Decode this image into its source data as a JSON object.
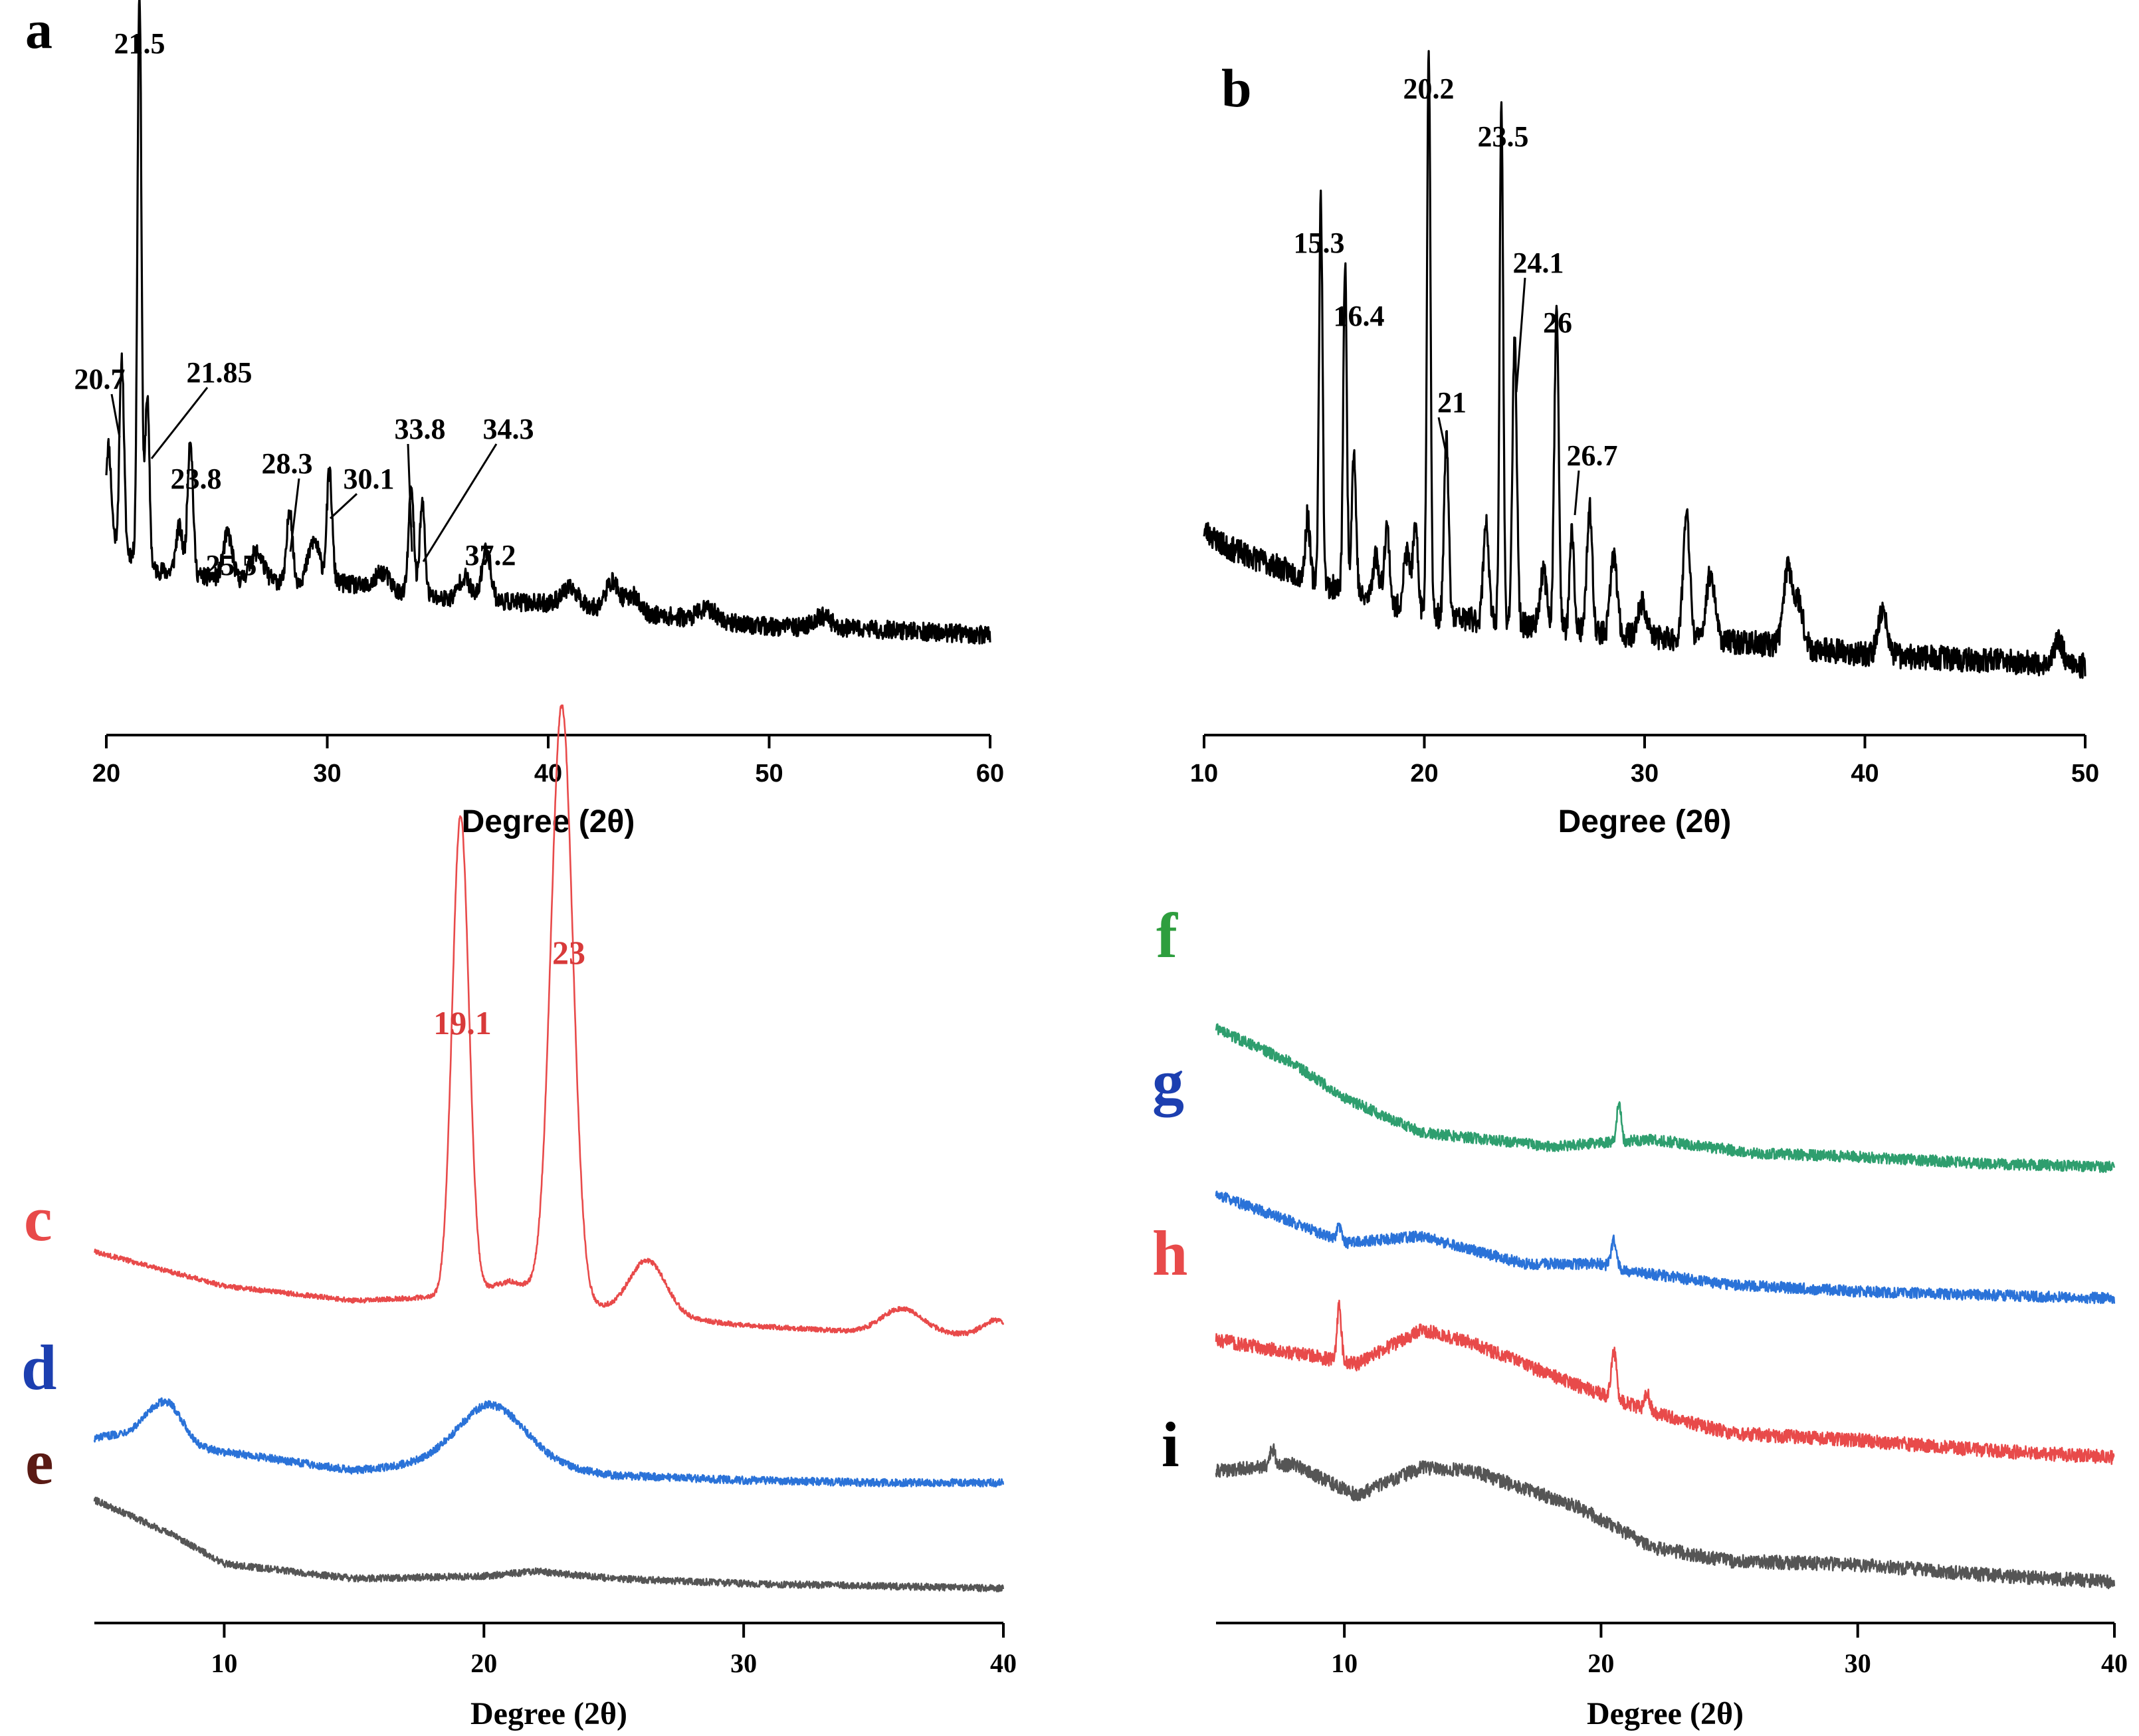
{
  "chart_data": [
    {
      "panel": "a",
      "type": "line",
      "xlabel": "Degree (2θ)",
      "xlim": [
        20,
        60
      ],
      "xticks": [
        20,
        30,
        40,
        50,
        60
      ],
      "ylim": [
        0,
        100
      ],
      "series": [
        {
          "name": "a",
          "color": "#000000",
          "baseline": [
            [
              20,
              18
            ],
            [
              22,
              12
            ],
            [
              26,
              10
            ],
            [
              30,
              10
            ],
            [
              35,
              7
            ],
            [
              40,
              6
            ],
            [
              45,
              4
            ],
            [
              50,
              2
            ],
            [
              55,
              1.5
            ],
            [
              60,
              0.5
            ]
          ],
          "noise": 1.6,
          "peaks": [
            [
              20.1,
              16,
              0.12
            ],
            [
              20.7,
              33,
              0.1
            ],
            [
              21.5,
              100,
              0.09
            ],
            [
              21.85,
              30,
              0.1
            ],
            [
              23.3,
              8,
              0.15
            ],
            [
              23.8,
              24,
              0.12
            ],
            [
              25.5,
              8,
              0.2
            ],
            [
              26.8,
              5,
              0.3
            ],
            [
              28.3,
              13,
              0.12
            ],
            [
              29.4,
              7,
              0.25
            ],
            [
              30.1,
              19,
              0.12
            ],
            [
              32.5,
              3,
              0.3
            ],
            [
              33.8,
              18,
              0.12
            ],
            [
              34.3,
              16,
              0.12
            ],
            [
              36.2,
              4,
              0.25
            ],
            [
              37.2,
              9,
              0.2
            ],
            [
              41,
              3,
              0.4
            ],
            [
              42.9,
              5,
              0.3
            ],
            [
              43.8,
              3,
              0.3
            ],
            [
              47.2,
              2,
              0.4
            ],
            [
              52.4,
              2,
              0.4
            ]
          ]
        }
      ],
      "annotations": [
        {
          "text": "21.5",
          "x": 21.5,
          "y": 100
        },
        {
          "text": "20.7",
          "x": 20.7,
          "y": 33
        },
        {
          "text": "21.85",
          "x": 21.85,
          "y": 30
        },
        {
          "text": "23.8",
          "x": 23.8,
          "y": 24
        },
        {
          "text": "25.5",
          "x": 25.5,
          "y": 8
        },
        {
          "text": "28.3",
          "x": 28.3,
          "y": 13
        },
        {
          "text": "30.1",
          "x": 30.1,
          "y": 19
        },
        {
          "text": "33.8",
          "x": 33.8,
          "y": 18
        },
        {
          "text": "34.3",
          "x": 34.3,
          "y": 16
        },
        {
          "text": "37.2",
          "x": 37.2,
          "y": 9
        }
      ]
    },
    {
      "panel": "b",
      "type": "line",
      "xlabel": "Degree (2θ)",
      "xlim": [
        10,
        50
      ],
      "xticks": [
        10,
        20,
        30,
        40,
        50
      ],
      "ylim": [
        0,
        100
      ],
      "series": [
        {
          "name": "b",
          "color": "#000000",
          "baseline": [
            [
              10,
              25
            ],
            [
              11,
              22
            ],
            [
              13,
              19
            ],
            [
              15,
              16
            ],
            [
              18,
              12
            ],
            [
              20,
              10
            ],
            [
              25,
              8
            ],
            [
              30,
              6
            ],
            [
              35,
              5
            ],
            [
              40,
              3
            ],
            [
              45,
              2
            ],
            [
              50,
              1
            ]
          ],
          "noise": 2.2,
          "peaks": [
            [
              14.7,
              11,
              0.1
            ],
            [
              15.3,
              68,
              0.08
            ],
            [
              16.4,
              58,
              0.08
            ],
            [
              16.8,
              25,
              0.1
            ],
            [
              17.8,
              8,
              0.15
            ],
            [
              18.3,
              14,
              0.12
            ],
            [
              19.2,
              10,
              0.15
            ],
            [
              19.6,
              14,
              0.12
            ],
            [
              20.2,
              100,
              0.08
            ],
            [
              21,
              32,
              0.1
            ],
            [
              22.8,
              18,
              0.12
            ],
            [
              23.5,
              91,
              0.08
            ],
            [
              24.1,
              50,
              0.1
            ],
            [
              25.4,
              10,
              0.15
            ],
            [
              26,
              56,
              0.1
            ],
            [
              26.7,
              17,
              0.1
            ],
            [
              27.5,
              22,
              0.12
            ],
            [
              28.6,
              14,
              0.15
            ],
            [
              29.9,
              6,
              0.2
            ],
            [
              31.9,
              22,
              0.15
            ],
            [
              33,
              12,
              0.2
            ],
            [
              36.5,
              14,
              0.2
            ],
            [
              37,
              8,
              0.2
            ],
            [
              40.8,
              8,
              0.2
            ],
            [
              48.8,
              4,
              0.2
            ]
          ]
        }
      ],
      "annotations": [
        {
          "text": "20.2",
          "x": 20.2,
          "y": 100
        },
        {
          "text": "23.5",
          "x": 23.5,
          "y": 91
        },
        {
          "text": "15.3",
          "x": 15.3,
          "y": 68
        },
        {
          "text": "16.4",
          "x": 16.4,
          "y": 58
        },
        {
          "text": "24.1",
          "x": 24.1,
          "y": 50
        },
        {
          "text": "26",
          "x": 26,
          "y": 56
        },
        {
          "text": "21",
          "x": 21,
          "y": 32
        },
        {
          "text": "26.7",
          "x": 26.7,
          "y": 17
        }
      ]
    },
    {
      "panel": "c-d-e",
      "type": "line",
      "xlabel": "Degree (2θ)",
      "xlim": [
        5,
        40
      ],
      "xticks": [
        10,
        20,
        30,
        40
      ],
      "series": [
        {
          "name": "c",
          "color": "#e84a4a",
          "offset": 95,
          "noise": 1.0,
          "baseline": [
            [
              5,
              42
            ],
            [
              10,
              28
            ],
            [
              15,
              22
            ],
            [
              19,
              24
            ],
            [
              21,
              30
            ],
            [
              25,
              18
            ],
            [
              30,
              12
            ],
            [
              35,
              9
            ],
            [
              40,
              8
            ]
          ],
          "peaks": [
            [
              19.1,
              195,
              0.32
            ],
            [
              23,
              240,
              0.42
            ],
            [
              26.3,
              22,
              0.7
            ],
            [
              36.1,
              10,
              0.8
            ],
            [
              39.7,
              6,
              0.5
            ]
          ]
        },
        {
          "name": "d",
          "color": "#2a72d8",
          "offset": 43,
          "noise": 1.6,
          "baseline": [
            [
              5,
              18
            ],
            [
              7,
              22
            ],
            [
              9,
              14
            ],
            [
              15,
              5
            ],
            [
              20,
              10
            ],
            [
              25,
              3
            ],
            [
              30,
              1
            ],
            [
              35,
              0
            ],
            [
              40,
              0
            ]
          ],
          "peaks": [
            [
              7.8,
              14,
              0.6
            ],
            [
              20.3,
              22,
              1.3
            ]
          ]
        },
        {
          "name": "e",
          "color": "#555555",
          "offset": 0,
          "noise": 1.4,
          "baseline": [
            [
              5,
              36
            ],
            [
              8,
              22
            ],
            [
              10,
              10
            ],
            [
              15,
              4
            ],
            [
              20,
              5
            ],
            [
              22,
              7
            ],
            [
              25,
              4
            ],
            [
              30,
              2
            ],
            [
              35,
              1
            ],
            [
              40,
              0
            ]
          ],
          "peaks": []
        }
      ],
      "annotations": [
        {
          "text": "19.1",
          "x": 19.1,
          "series": "c"
        },
        {
          "text": "23",
          "x": 23,
          "series": "c"
        }
      ]
    },
    {
      "panel": "f-g-h-i",
      "type": "line",
      "xlabel": "Degree (2θ)",
      "xlim": [
        5,
        40
      ],
      "xticks": [
        10,
        20,
        30,
        40
      ],
      "series": [
        {
          "name": "f",
          "color": "#2e9e6e",
          "offset": 120,
          "noise": 1.6,
          "baseline": [
            [
              5,
              40
            ],
            [
              8,
              30
            ],
            [
              10,
              20
            ],
            [
              13,
              10
            ],
            [
              18,
              6
            ],
            [
              22,
              8
            ],
            [
              26,
              4
            ],
            [
              30,
              3
            ],
            [
              35,
              1
            ],
            [
              40,
              0
            ]
          ],
          "peaks": [
            [
              20.7,
              12,
              0.08
            ]
          ]
        },
        {
          "name": "g",
          "color": "#2a72d8",
          "offset": 82,
          "noise": 1.6,
          "baseline": [
            [
              5,
              30
            ],
            [
              8,
              22
            ],
            [
              10,
              16
            ],
            [
              13,
              18
            ],
            [
              17,
              10
            ],
            [
              20,
              10
            ],
            [
              21,
              8
            ],
            [
              25,
              4
            ],
            [
              30,
              2
            ],
            [
              35,
              1
            ],
            [
              40,
              0
            ]
          ],
          "peaks": [
            [
              9.8,
              4,
              0.1
            ],
            [
              20.5,
              8,
              0.1
            ]
          ]
        },
        {
          "name": "h",
          "color": "#e84a4a",
          "offset": 35,
          "noise": 2.0,
          "baseline": [
            [
              5,
              35
            ],
            [
              9,
              30
            ],
            [
              10.5,
              28
            ],
            [
              13,
              38
            ],
            [
              15,
              34
            ],
            [
              19,
              22
            ],
            [
              22,
              14
            ],
            [
              25,
              8
            ],
            [
              30,
              6
            ],
            [
              35,
              3
            ],
            [
              40,
              1
            ]
          ],
          "peaks": [
            [
              9.8,
              16,
              0.08
            ],
            [
              20.5,
              14,
              0.1
            ],
            [
              21.8,
              5,
              0.1
            ]
          ]
        },
        {
          "name": "i",
          "color": "#555555",
          "offset": 0,
          "noise": 2.0,
          "baseline": [
            [
              5,
              32
            ],
            [
              8,
              34
            ],
            [
              10.5,
              25
            ],
            [
              13,
              33
            ],
            [
              15,
              32
            ],
            [
              19,
              22
            ],
            [
              22,
              10
            ],
            [
              25,
              6
            ],
            [
              30,
              5
            ],
            [
              35,
              2
            ],
            [
              40,
              0
            ]
          ],
          "peaks": [
            [
              7.2,
              5,
              0.1
            ]
          ]
        }
      ],
      "annotations": []
    }
  ]
}
